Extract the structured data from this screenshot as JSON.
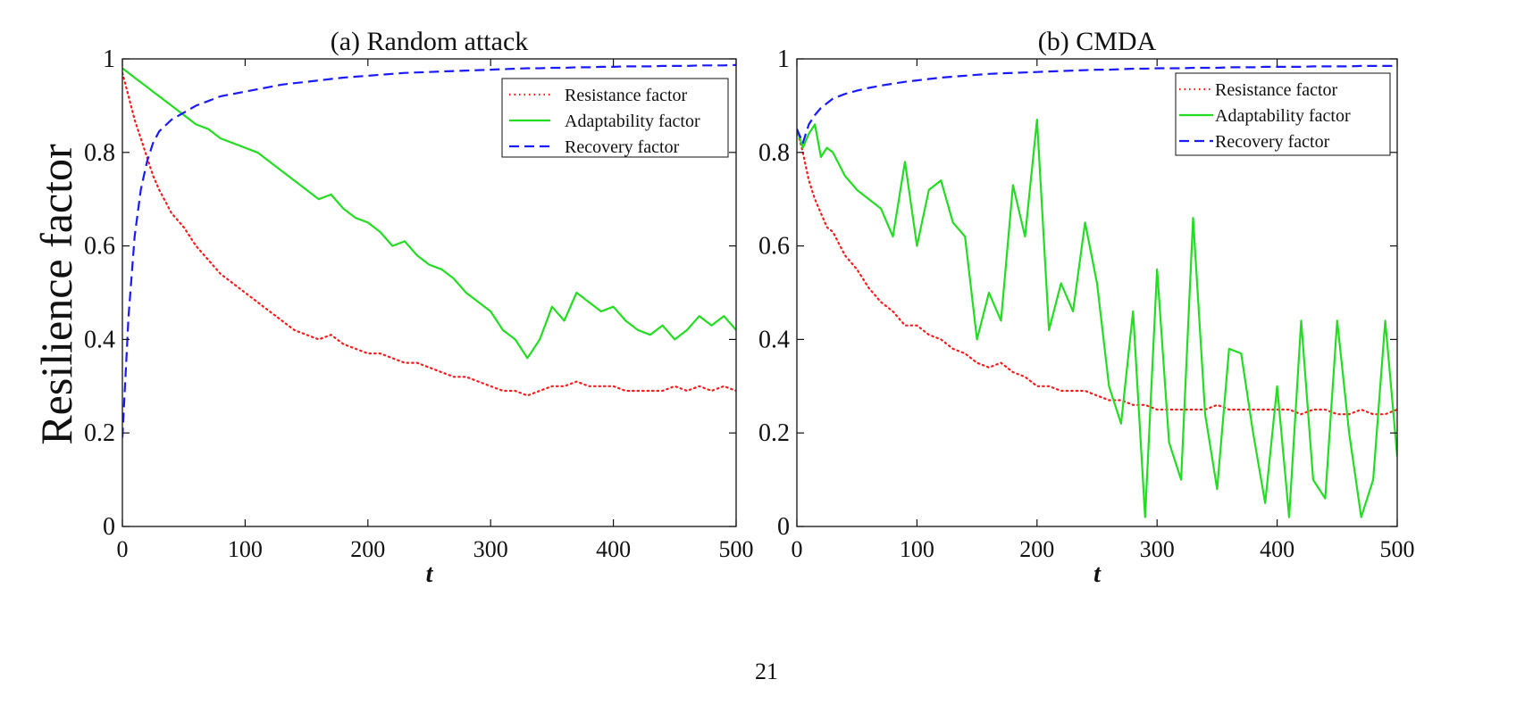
{
  "page": {
    "number": "21"
  },
  "shared_ylabel": "Resilience factor",
  "colors": {
    "resistance": "#ff1a1a",
    "adaptability": "#22dd22",
    "recovery": "#1a1aff",
    "axes": "#111111"
  },
  "chart_data": [
    {
      "type": "line",
      "title": "(a) Random attack",
      "xlabel": "t",
      "ylabel": "Resilience factor",
      "xlim": [
        0,
        500
      ],
      "ylim": [
        0,
        1
      ],
      "xticks": [
        "0",
        "100",
        "200",
        "300",
        "400",
        "500"
      ],
      "yticks": [
        "0",
        "0.2",
        "0.4",
        "0.6",
        "0.8",
        "1"
      ],
      "grid": false,
      "legend_position": "top-right",
      "x": [
        0,
        5,
        10,
        15,
        20,
        25,
        30,
        40,
        50,
        60,
        70,
        80,
        90,
        100,
        110,
        120,
        130,
        140,
        150,
        160,
        170,
        180,
        190,
        200,
        210,
        220,
        230,
        240,
        250,
        260,
        270,
        280,
        290,
        300,
        310,
        320,
        330,
        340,
        350,
        360,
        370,
        380,
        390,
        400,
        410,
        420,
        430,
        440,
        450,
        460,
        470,
        480,
        490,
        500
      ],
      "series": [
        {
          "name": "Resistance factor",
          "style": "dotted",
          "color": "#ff1a1a",
          "values": [
            0.97,
            0.92,
            0.87,
            0.83,
            0.79,
            0.75,
            0.72,
            0.67,
            0.64,
            0.6,
            0.57,
            0.54,
            0.52,
            0.5,
            0.48,
            0.46,
            0.44,
            0.42,
            0.41,
            0.4,
            0.41,
            0.39,
            0.38,
            0.37,
            0.37,
            0.36,
            0.35,
            0.35,
            0.34,
            0.33,
            0.32,
            0.32,
            0.31,
            0.3,
            0.29,
            0.29,
            0.28,
            0.29,
            0.3,
            0.3,
            0.31,
            0.3,
            0.3,
            0.3,
            0.29,
            0.29,
            0.29,
            0.29,
            0.3,
            0.29,
            0.3,
            0.29,
            0.3,
            0.29
          ]
        },
        {
          "name": "Adaptability factor",
          "style": "solid",
          "color": "#22dd22",
          "values": [
            0.98,
            0.97,
            0.96,
            0.95,
            0.94,
            0.93,
            0.92,
            0.9,
            0.88,
            0.86,
            0.85,
            0.83,
            0.82,
            0.81,
            0.8,
            0.78,
            0.76,
            0.74,
            0.72,
            0.7,
            0.71,
            0.68,
            0.66,
            0.65,
            0.63,
            0.6,
            0.61,
            0.58,
            0.56,
            0.55,
            0.53,
            0.5,
            0.48,
            0.46,
            0.42,
            0.4,
            0.36,
            0.4,
            0.47,
            0.44,
            0.5,
            0.48,
            0.46,
            0.47,
            0.44,
            0.42,
            0.41,
            0.43,
            0.4,
            0.42,
            0.45,
            0.43,
            0.45,
            0.42
          ]
        },
        {
          "name": "Recovery factor",
          "style": "dashed",
          "color": "#1a1aff",
          "values": [
            0.19,
            0.45,
            0.62,
            0.72,
            0.78,
            0.82,
            0.845,
            0.87,
            0.885,
            0.9,
            0.91,
            0.92,
            0.925,
            0.93,
            0.935,
            0.94,
            0.945,
            0.948,
            0.951,
            0.954,
            0.957,
            0.96,
            0.962,
            0.964,
            0.966,
            0.968,
            0.97,
            0.971,
            0.972,
            0.973,
            0.974,
            0.975,
            0.976,
            0.977,
            0.978,
            0.979,
            0.98,
            0.98,
            0.981,
            0.981,
            0.982,
            0.982,
            0.983,
            0.983,
            0.984,
            0.984,
            0.984,
            0.985,
            0.985,
            0.985,
            0.986,
            0.986,
            0.986,
            0.987
          ]
        }
      ]
    },
    {
      "type": "line",
      "title": "(b) CMDA",
      "xlabel": "t",
      "ylabel": "",
      "xlim": [
        0,
        500
      ],
      "ylim": [
        0,
        1
      ],
      "xticks": [
        "0",
        "100",
        "200",
        "300",
        "400",
        "500"
      ],
      "yticks": [
        "0",
        "0.2",
        "0.4",
        "0.6",
        "0.8",
        "1"
      ],
      "grid": false,
      "legend_position": "top-right",
      "x": [
        0,
        5,
        10,
        15,
        20,
        25,
        30,
        40,
        50,
        60,
        70,
        80,
        90,
        100,
        110,
        120,
        130,
        140,
        150,
        160,
        170,
        180,
        190,
        200,
        210,
        220,
        230,
        240,
        250,
        260,
        270,
        280,
        290,
        300,
        310,
        320,
        330,
        340,
        350,
        360,
        370,
        380,
        390,
        400,
        410,
        420,
        430,
        440,
        450,
        460,
        470,
        480,
        490,
        500
      ],
      "series": [
        {
          "name": "Resistance factor",
          "style": "dotted",
          "color": "#ff1a1a",
          "values": [
            0.85,
            0.8,
            0.74,
            0.7,
            0.67,
            0.64,
            0.63,
            0.58,
            0.55,
            0.51,
            0.48,
            0.46,
            0.43,
            0.43,
            0.41,
            0.4,
            0.38,
            0.37,
            0.35,
            0.34,
            0.35,
            0.33,
            0.32,
            0.3,
            0.3,
            0.29,
            0.29,
            0.29,
            0.28,
            0.27,
            0.27,
            0.26,
            0.26,
            0.25,
            0.25,
            0.25,
            0.25,
            0.25,
            0.26,
            0.25,
            0.25,
            0.25,
            0.25,
            0.25,
            0.25,
            0.24,
            0.25,
            0.25,
            0.24,
            0.24,
            0.25,
            0.24,
            0.24,
            0.25
          ]
        },
        {
          "name": "Adaptability factor",
          "style": "solid",
          "color": "#22dd22",
          "values": [
            0.85,
            0.81,
            0.84,
            0.86,
            0.79,
            0.81,
            0.8,
            0.75,
            0.72,
            0.7,
            0.68,
            0.62,
            0.78,
            0.6,
            0.72,
            0.74,
            0.65,
            0.62,
            0.4,
            0.5,
            0.44,
            0.73,
            0.62,
            0.87,
            0.42,
            0.52,
            0.46,
            0.65,
            0.52,
            0.3,
            0.22,
            0.46,
            0.02,
            0.55,
            0.18,
            0.1,
            0.66,
            0.24,
            0.08,
            0.38,
            0.37,
            0.2,
            0.05,
            0.3,
            0.02,
            0.44,
            0.1,
            0.06,
            0.44,
            0.2,
            0.02,
            0.1,
            0.44,
            0.15
          ]
        },
        {
          "name": "Recovery factor",
          "style": "dashed",
          "color": "#1a1aff",
          "values": [
            0.85,
            0.82,
            0.86,
            0.88,
            0.895,
            0.905,
            0.915,
            0.925,
            0.932,
            0.938,
            0.943,
            0.947,
            0.951,
            0.954,
            0.957,
            0.96,
            0.962,
            0.964,
            0.966,
            0.968,
            0.969,
            0.97,
            0.971,
            0.972,
            0.973,
            0.974,
            0.975,
            0.976,
            0.977,
            0.977,
            0.978,
            0.979,
            0.979,
            0.98,
            0.98,
            0.98,
            0.981,
            0.981,
            0.981,
            0.982,
            0.982,
            0.982,
            0.983,
            0.983,
            0.983,
            0.983,
            0.984,
            0.984,
            0.984,
            0.984,
            0.985,
            0.985,
            0.985,
            0.985
          ]
        }
      ]
    }
  ]
}
